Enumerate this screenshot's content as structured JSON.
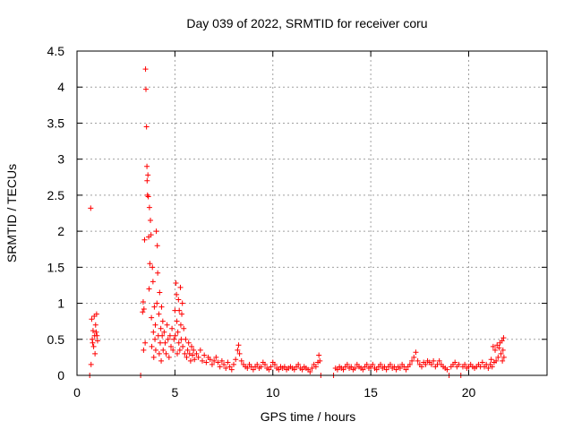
{
  "chart_data": {
    "type": "scatter",
    "title": "Day 039 of 2022, SRMTID for receiver coru",
    "xlabel": "GPS time / hours",
    "ylabel": "SRMTID / TECUs",
    "xlim": [
      0,
      24
    ],
    "ylim": [
      0,
      4.5
    ],
    "xticks": [
      0,
      5,
      10,
      15,
      20
    ],
    "xtick_labels": [
      "0",
      "5",
      "10",
      "15",
      "20"
    ],
    "yticks": [
      0,
      0.5,
      1,
      1.5,
      2,
      2.5,
      3,
      3.5,
      4,
      4.5
    ],
    "ytick_labels": [
      "0",
      "0.5",
      "1",
      "1.5",
      "2",
      "2.5",
      "3",
      "3.5",
      "4",
      "4.5"
    ],
    "grid": true,
    "marker": "+",
    "color": "#ff0000",
    "series": [
      {
        "name": "SRMTID",
        "points": [
          [
            0.65,
            0.0
          ],
          [
            0.7,
            2.32
          ],
          [
            0.72,
            0.15
          ],
          [
            0.75,
            0.78
          ],
          [
            0.78,
            0.5
          ],
          [
            0.8,
            0.45
          ],
          [
            0.82,
            0.62
          ],
          [
            0.85,
            0.4
          ],
          [
            0.88,
            0.82
          ],
          [
            0.9,
            0.55
          ],
          [
            0.92,
            0.3
          ],
          [
            0.95,
            0.7
          ],
          [
            0.98,
            0.6
          ],
          [
            1.0,
            0.85
          ],
          [
            1.02,
            0.55
          ],
          [
            1.05,
            0.48
          ],
          [
            3.25,
            0.0
          ],
          [
            3.35,
            0.88
          ],
          [
            3.38,
            1.02
          ],
          [
            3.4,
            0.35
          ],
          [
            3.42,
            0.92
          ],
          [
            3.45,
            1.88
          ],
          [
            3.48,
            0.45
          ],
          [
            3.5,
            4.25
          ],
          [
            3.52,
            3.97
          ],
          [
            3.55,
            3.45
          ],
          [
            3.57,
            2.9
          ],
          [
            3.58,
            2.7
          ],
          [
            3.6,
            2.5
          ],
          [
            3.62,
            2.78
          ],
          [
            3.64,
            2.48
          ],
          [
            3.66,
            1.92
          ],
          [
            3.68,
            1.2
          ],
          [
            3.7,
            2.33
          ],
          [
            3.72,
            1.55
          ],
          [
            3.75,
            2.15
          ],
          [
            3.78,
            1.95
          ],
          [
            3.8,
            0.8
          ],
          [
            3.82,
            0.4
          ],
          [
            3.85,
            1.5
          ],
          [
            3.88,
            1.3
          ],
          [
            3.9,
            0.6
          ],
          [
            3.92,
            0.25
          ],
          [
            3.95,
            0.95
          ],
          [
            3.98,
            0.5
          ],
          [
            4.0,
            0.7
          ],
          [
            4.02,
            0.35
          ],
          [
            4.05,
            2.0
          ],
          [
            4.08,
            1.0
          ],
          [
            4.1,
            1.8
          ],
          [
            4.12,
            1.42
          ],
          [
            4.15,
            0.55
          ],
          [
            4.18,
            0.85
          ],
          [
            4.2,
            0.3
          ],
          [
            4.22,
            1.15
          ],
          [
            4.25,
            0.45
          ],
          [
            4.28,
            0.65
          ],
          [
            4.3,
            0.2
          ],
          [
            4.32,
            0.95
          ],
          [
            4.35,
            0.55
          ],
          [
            4.38,
            0.75
          ],
          [
            4.4,
            0.35
          ],
          [
            4.45,
            0.6
          ],
          [
            4.5,
            0.45
          ],
          [
            4.55,
            0.3
          ],
          [
            4.6,
            0.7
          ],
          [
            4.65,
            0.5
          ],
          [
            4.7,
            0.25
          ],
          [
            4.75,
            0.55
          ],
          [
            4.8,
            0.4
          ],
          [
            4.85,
            0.65
          ],
          [
            4.9,
            0.35
          ],
          [
            4.95,
            0.5
          ],
          [
            5.0,
            0.9
          ],
          [
            5.02,
            0.55
          ],
          [
            5.05,
            1.28
          ],
          [
            5.08,
            1.12
          ],
          [
            5.1,
            0.75
          ],
          [
            5.12,
            0.3
          ],
          [
            5.15,
            0.6
          ],
          [
            5.18,
            1.05
          ],
          [
            5.2,
            0.45
          ],
          [
            5.22,
            0.9
          ],
          [
            5.25,
            0.35
          ],
          [
            5.28,
            1.22
          ],
          [
            5.3,
            0.7
          ],
          [
            5.32,
            0.5
          ],
          [
            5.35,
            0.85
          ],
          [
            5.38,
            1.0
          ],
          [
            5.4,
            0.4
          ],
          [
            5.45,
            0.65
          ],
          [
            5.5,
            0.3
          ],
          [
            5.55,
            0.5
          ],
          [
            5.6,
            0.25
          ],
          [
            5.65,
            0.35
          ],
          [
            5.7,
            0.45
          ],
          [
            5.75,
            0.3
          ],
          [
            5.8,
            0.2
          ],
          [
            5.85,
            0.4
          ],
          [
            5.9,
            0.28
          ],
          [
            5.95,
            0.35
          ],
          [
            6.0,
            0.22
          ],
          [
            6.1,
            0.3
          ],
          [
            6.2,
            0.25
          ],
          [
            6.3,
            0.35
          ],
          [
            6.4,
            0.2
          ],
          [
            6.5,
            0.28
          ],
          [
            6.6,
            0.18
          ],
          [
            6.7,
            0.25
          ],
          [
            6.8,
            0.22
          ],
          [
            6.9,
            0.15
          ],
          [
            7.0,
            0.2
          ],
          [
            7.1,
            0.25
          ],
          [
            7.2,
            0.18
          ],
          [
            7.3,
            0.12
          ],
          [
            7.4,
            0.2
          ],
          [
            7.5,
            0.15
          ],
          [
            7.6,
            0.1
          ],
          [
            7.7,
            0.18
          ],
          [
            7.8,
            0.12
          ],
          [
            7.9,
            0.08
          ],
          [
            8.0,
            0.15
          ],
          [
            8.1,
            0.22
          ],
          [
            8.2,
            0.35
          ],
          [
            8.25,
            0.42
          ],
          [
            8.3,
            0.3
          ],
          [
            8.4,
            0.2
          ],
          [
            8.5,
            0.15
          ],
          [
            8.6,
            0.12
          ],
          [
            8.7,
            0.1
          ],
          [
            8.8,
            0.15
          ],
          [
            8.9,
            0.12
          ],
          [
            9.0,
            0.08
          ],
          [
            9.1,
            0.12
          ],
          [
            9.2,
            0.15
          ],
          [
            9.3,
            0.1
          ],
          [
            9.4,
            0.12
          ],
          [
            9.5,
            0.18
          ],
          [
            9.6,
            0.15
          ],
          [
            9.7,
            0.1
          ],
          [
            9.8,
            0.08
          ],
          [
            9.9,
            0.12
          ],
          [
            10.0,
            0.18
          ],
          [
            10.1,
            0.15
          ],
          [
            10.2,
            0.1
          ],
          [
            10.3,
            0.08
          ],
          [
            10.4,
            0.12
          ],
          [
            10.5,
            0.1
          ],
          [
            10.6,
            0.12
          ],
          [
            10.7,
            0.08
          ],
          [
            10.8,
            0.1
          ],
          [
            10.9,
            0.12
          ],
          [
            11.0,
            0.1
          ],
          [
            11.1,
            0.08
          ],
          [
            11.2,
            0.12
          ],
          [
            11.3,
            0.15
          ],
          [
            11.4,
            0.1
          ],
          [
            11.5,
            0.08
          ],
          [
            11.6,
            0.12
          ],
          [
            11.7,
            0.1
          ],
          [
            11.8,
            0.08
          ],
          [
            11.9,
            0.05
          ],
          [
            12.0,
            0.1
          ],
          [
            12.1,
            0.15
          ],
          [
            12.2,
            0.12
          ],
          [
            12.3,
            0.18
          ],
          [
            12.35,
            0.28
          ],
          [
            12.4,
            0.2
          ],
          [
            12.45,
            0.0
          ],
          [
            13.1,
            0.0
          ],
          [
            13.2,
            0.1
          ],
          [
            13.3,
            0.08
          ],
          [
            13.4,
            0.12
          ],
          [
            13.5,
            0.1
          ],
          [
            13.6,
            0.08
          ],
          [
            13.7,
            0.12
          ],
          [
            13.8,
            0.15
          ],
          [
            13.9,
            0.1
          ],
          [
            14.0,
            0.12
          ],
          [
            14.1,
            0.08
          ],
          [
            14.2,
            0.1
          ],
          [
            14.3,
            0.15
          ],
          [
            14.4,
            0.12
          ],
          [
            14.5,
            0.1
          ],
          [
            14.6,
            0.08
          ],
          [
            14.7,
            0.12
          ],
          [
            14.8,
            0.15
          ],
          [
            14.9,
            0.1
          ],
          [
            15.0,
            0.12
          ],
          [
            15.1,
            0.15
          ],
          [
            15.2,
            0.1
          ],
          [
            15.3,
            0.08
          ],
          [
            15.4,
            0.12
          ],
          [
            15.5,
            0.15
          ],
          [
            15.6,
            0.1
          ],
          [
            15.7,
            0.12
          ],
          [
            15.8,
            0.08
          ],
          [
            15.9,
            0.12
          ],
          [
            16.0,
            0.15
          ],
          [
            16.1,
            0.1
          ],
          [
            16.2,
            0.12
          ],
          [
            16.3,
            0.08
          ],
          [
            16.4,
            0.12
          ],
          [
            16.5,
            0.1
          ],
          [
            16.6,
            0.15
          ],
          [
            16.7,
            0.12
          ],
          [
            16.8,
            0.08
          ],
          [
            16.9,
            0.12
          ],
          [
            17.0,
            0.15
          ],
          [
            17.1,
            0.2
          ],
          [
            17.2,
            0.25
          ],
          [
            17.3,
            0.32
          ],
          [
            17.4,
            0.2
          ],
          [
            17.5,
            0.15
          ],
          [
            17.6,
            0.12
          ],
          [
            17.7,
            0.18
          ],
          [
            17.8,
            0.15
          ],
          [
            17.9,
            0.2
          ],
          [
            18.0,
            0.18
          ],
          [
            18.1,
            0.15
          ],
          [
            18.2,
            0.2
          ],
          [
            18.3,
            0.12
          ],
          [
            18.4,
            0.15
          ],
          [
            18.5,
            0.2
          ],
          [
            18.6,
            0.15
          ],
          [
            18.7,
            0.12
          ],
          [
            18.8,
            0.1
          ],
          [
            18.9,
            0.08
          ],
          [
            19.0,
            0.0
          ],
          [
            19.1,
            0.12
          ],
          [
            19.2,
            0.15
          ],
          [
            19.3,
            0.18
          ],
          [
            19.4,
            0.12
          ],
          [
            19.5,
            0.15
          ],
          [
            19.6,
            0.0
          ],
          [
            19.7,
            0.12
          ],
          [
            19.8,
            0.15
          ],
          [
            19.9,
            0.1
          ],
          [
            20.0,
            0.12
          ],
          [
            20.1,
            0.15
          ],
          [
            20.2,
            0.12
          ],
          [
            20.3,
            0.1
          ],
          [
            20.4,
            0.12
          ],
          [
            20.5,
            0.15
          ],
          [
            20.6,
            0.12
          ],
          [
            20.7,
            0.18
          ],
          [
            20.8,
            0.12
          ],
          [
            20.9,
            0.15
          ],
          [
            21.0,
            0.1
          ],
          [
            21.1,
            0.15
          ],
          [
            21.15,
            0.22
          ],
          [
            21.2,
            0.12
          ],
          [
            21.25,
            0.4
          ],
          [
            21.3,
            0.18
          ],
          [
            21.35,
            0.35
          ],
          [
            21.4,
            0.2
          ],
          [
            21.45,
            0.42
          ],
          [
            21.5,
            0.25
          ],
          [
            21.55,
            0.38
          ],
          [
            21.6,
            0.45
          ],
          [
            21.65,
            0.3
          ],
          [
            21.7,
            0.48
          ],
          [
            21.72,
            0.2
          ],
          [
            21.75,
            0.35
          ],
          [
            21.78,
            0.52
          ],
          [
            21.8,
            0.25
          ]
        ]
      }
    ]
  }
}
